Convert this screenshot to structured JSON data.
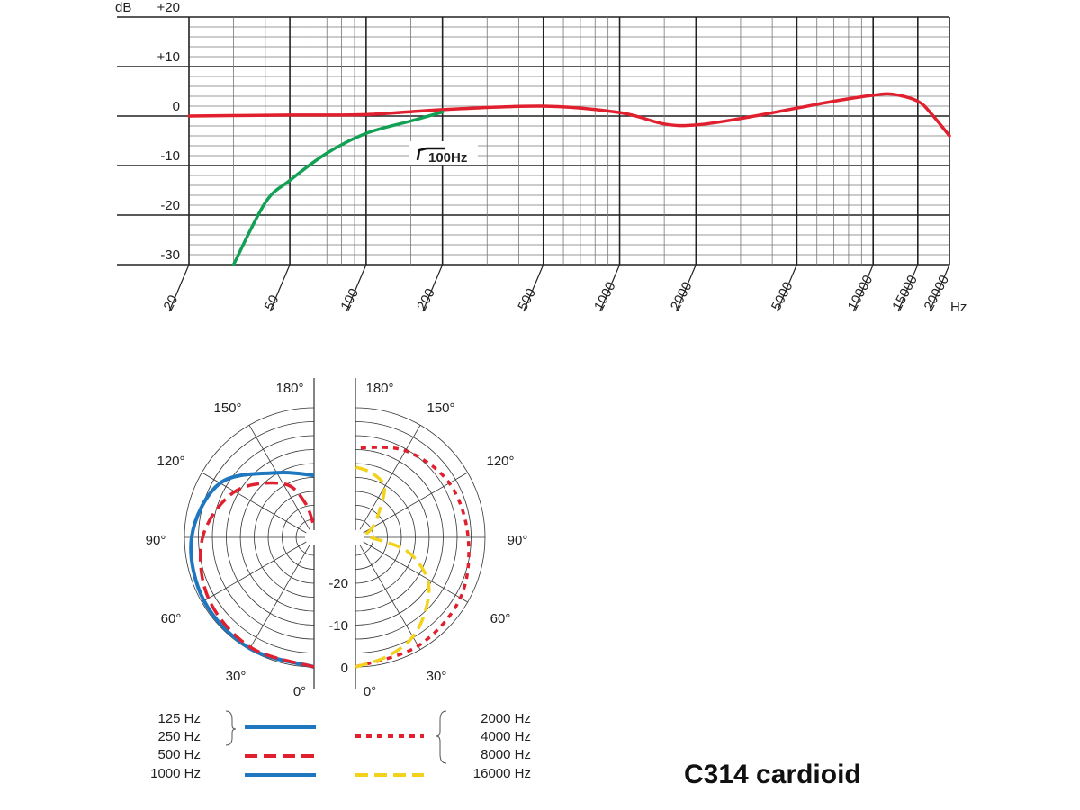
{
  "chart_data": [
    {
      "type": "line",
      "xscale": "log",
      "xlim": [
        20,
        20000
      ],
      "ylim": [
        -30,
        20
      ],
      "xlabel": "Hz",
      "ylabel": "dB",
      "grid": true,
      "x_ticks": [
        "20",
        "50",
        "100",
        "200",
        "500",
        "1000",
        "2000",
        "5000",
        "10000",
        "15000",
        "20000"
      ],
      "y_ticks": [
        "+20",
        "+10",
        "0",
        "-10",
        "-20",
        "-30"
      ],
      "annotation": "100Hz",
      "series": [
        {
          "color": "#e0202e",
          "points": [
            [
              20,
              0
            ],
            [
              50,
              0.2
            ],
            [
              100,
              0.3
            ],
            [
              200,
              1.3
            ],
            [
              500,
              2
            ],
            [
              1000,
              0.7
            ],
            [
              1500,
              -1.6
            ],
            [
              2000,
              -1.8
            ],
            [
              3000,
              -0.5
            ],
            [
              5000,
              1.6
            ],
            [
              7000,
              3
            ],
            [
              10000,
              4.2
            ],
            [
              12000,
              4.4
            ],
            [
              15000,
              3
            ],
            [
              17000,
              0.4
            ],
            [
              20000,
              -4
            ]
          ]
        },
        {
          "color": "#12a055",
          "points": [
            [
              30,
              -30
            ],
            [
              40,
              -17.5
            ],
            [
              50,
              -13
            ],
            [
              70,
              -7.5
            ],
            [
              100,
              -3.5
            ],
            [
              150,
              -1
            ],
            [
              200,
              0.8
            ]
          ]
        }
      ]
    },
    {
      "type": "polar",
      "angle_ticks": [
        "0°",
        "30°",
        "60°",
        "90°",
        "120°",
        "150°",
        "180°"
      ],
      "r_ticks": [
        "-20",
        "-10",
        "0"
      ],
      "legend": {
        "left": [
          {
            "labels": [
              "125 Hz",
              "250 Hz"
            ],
            "color": "#1f77c0",
            "style": "solid"
          },
          {
            "labels": [
              "500 Hz"
            ],
            "color": "#e0202e",
            "style": "dashed"
          },
          {
            "labels": [
              "1000 Hz"
            ],
            "color": "#1f77c0",
            "style": "solid"
          }
        ],
        "right": [
          {
            "labels": [
              "2000 Hz",
              "4000 Hz",
              "8000 Hz"
            ],
            "color": "#e0202e",
            "style": "dotted"
          },
          {
            "labels": [
              "16000 Hz"
            ],
            "color": "#f2d21a",
            "style": "dashed"
          }
        ]
      },
      "series": [
        {
          "name": "125 Hz / 250 Hz / 1000 Hz",
          "side": "left",
          "color": "#1f77c0",
          "style": "solid",
          "angles": [
            0,
            30,
            60,
            90,
            120,
            150,
            180
          ],
          "db": [
            0,
            -0.3,
            -0.6,
            -1.7,
            -5,
            -13,
            -16
          ]
        },
        {
          "name": "500 Hz",
          "side": "left",
          "color": "#e0202e",
          "style": "dashed",
          "angles": [
            0,
            30,
            60,
            90,
            120,
            150,
            165,
            180
          ],
          "db": [
            0,
            -0.6,
            -1.8,
            -4.3,
            -9,
            -16,
            -22,
            -28
          ]
        },
        {
          "name": "2000 Hz / 4000 Hz / 8000 Hz",
          "side": "right",
          "color": "#e0202e",
          "style": "dotted",
          "angles": [
            0,
            30,
            60,
            90,
            120,
            150,
            180
          ],
          "db": [
            0,
            -1,
            -2,
            -4,
            -5,
            -7,
            -9.5
          ]
        },
        {
          "name": "16000 Hz",
          "side": "right",
          "color": "#f2d21a",
          "style": "dashed",
          "angles": [
            0,
            15,
            30,
            45,
            60,
            75,
            90,
            105,
            120,
            135,
            150,
            165,
            180
          ],
          "db": [
            0,
            -1.5,
            -3.5,
            -7,
            -11,
            -18,
            -27,
            -28,
            -26,
            -23,
            -17,
            -15,
            -14
          ]
        }
      ]
    }
  ],
  "title": "C314 cardioid"
}
